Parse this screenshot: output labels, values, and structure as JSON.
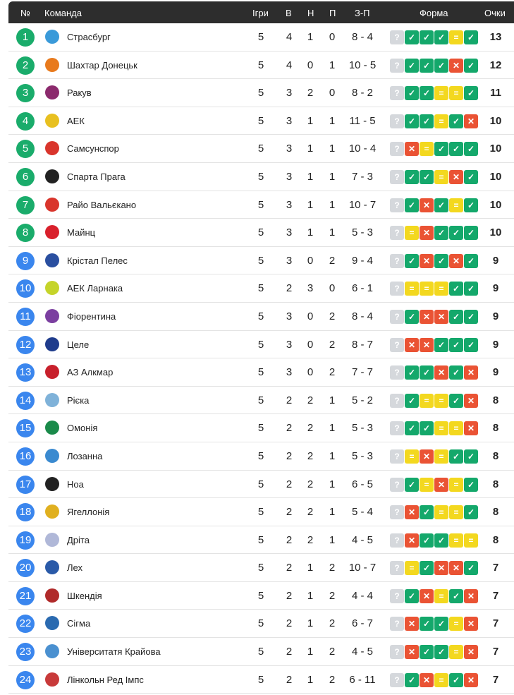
{
  "header": {
    "pos": "№",
    "team": "Команда",
    "played": "Ігри",
    "won": "В",
    "drawn": "Н",
    "lost": "П",
    "goals": "З-П",
    "form": "Форма",
    "points": "Очки"
  },
  "colors": {
    "top": "#1aac6b",
    "rest": "#3a86ee",
    "win": "#14a86b",
    "loss": "#ea5334",
    "draw": "#f3d81f",
    "unknown": "#d5d8dc"
  },
  "form_symbols": {
    "W": "✓",
    "L": "✕",
    "D": "=",
    "?": "?"
  },
  "rows": [
    {
      "pos": "1",
      "team": "Страсбург",
      "p": "5",
      "w": "4",
      "d": "1",
      "l": "0",
      "g": "8 - 4",
      "form": [
        "?",
        "W",
        "W",
        "W",
        "D",
        "W"
      ],
      "pts": "13",
      "logo": "#3a9ad9"
    },
    {
      "pos": "2",
      "team": "Шахтар Донецьк",
      "p": "5",
      "w": "4",
      "d": "0",
      "l": "1",
      "g": "10 - 5",
      "form": [
        "?",
        "W",
        "W",
        "W",
        "L",
        "W"
      ],
      "pts": "12",
      "logo": "#e87a1d"
    },
    {
      "pos": "3",
      "team": "Ракув",
      "p": "5",
      "w": "3",
      "d": "2",
      "l": "0",
      "g": "8 - 2",
      "form": [
        "?",
        "W",
        "W",
        "D",
        "D",
        "W"
      ],
      "pts": "11",
      "logo": "#8c2a6d"
    },
    {
      "pos": "4",
      "team": "АЕК",
      "p": "5",
      "w": "3",
      "d": "1",
      "l": "1",
      "g": "11 - 5",
      "form": [
        "?",
        "W",
        "W",
        "D",
        "W",
        "L"
      ],
      "pts": "10",
      "logo": "#e8c020"
    },
    {
      "pos": "5",
      "team": "Самсунспор",
      "p": "5",
      "w": "3",
      "d": "1",
      "l": "1",
      "g": "10 - 4",
      "form": [
        "?",
        "L",
        "D",
        "W",
        "W",
        "W"
      ],
      "pts": "10",
      "logo": "#d9352c"
    },
    {
      "pos": "6",
      "team": "Спарта Прага",
      "p": "5",
      "w": "3",
      "d": "1",
      "l": "1",
      "g": "7 - 3",
      "form": [
        "?",
        "W",
        "W",
        "D",
        "L",
        "W"
      ],
      "pts": "10",
      "logo": "#222222"
    },
    {
      "pos": "7",
      "team": "Райо Вальєкано",
      "p": "5",
      "w": "3",
      "d": "1",
      "l": "1",
      "g": "10 - 7",
      "form": [
        "?",
        "W",
        "L",
        "W",
        "D",
        "W"
      ],
      "pts": "10",
      "logo": "#d9352c"
    },
    {
      "pos": "8",
      "team": "Майнц",
      "p": "5",
      "w": "3",
      "d": "1",
      "l": "1",
      "g": "5 - 3",
      "form": [
        "?",
        "D",
        "L",
        "W",
        "W",
        "W"
      ],
      "pts": "10",
      "logo": "#d9202c"
    },
    {
      "pos": "9",
      "team": "Крістал Пелес",
      "p": "5",
      "w": "3",
      "d": "0",
      "l": "2",
      "g": "9 - 4",
      "form": [
        "?",
        "W",
        "L",
        "W",
        "L",
        "W"
      ],
      "pts": "9",
      "logo": "#2a4fa0"
    },
    {
      "pos": "10",
      "team": "АЕК Ларнака",
      "p": "5",
      "w": "2",
      "d": "3",
      "l": "0",
      "g": "6 - 1",
      "form": [
        "?",
        "D",
        "D",
        "D",
        "W",
        "W"
      ],
      "pts": "9",
      "logo": "#c5d42a"
    },
    {
      "pos": "11",
      "team": "Фіорентина",
      "p": "5",
      "w": "3",
      "d": "0",
      "l": "2",
      "g": "8 - 4",
      "form": [
        "?",
        "W",
        "L",
        "L",
        "W",
        "W"
      ],
      "pts": "9",
      "logo": "#7b3fa0"
    },
    {
      "pos": "12",
      "team": "Целе",
      "p": "5",
      "w": "3",
      "d": "0",
      "l": "2",
      "g": "8 - 7",
      "form": [
        "?",
        "L",
        "L",
        "W",
        "W",
        "W"
      ],
      "pts": "9",
      "logo": "#1f3c8c"
    },
    {
      "pos": "13",
      "team": "АЗ Алкмар",
      "p": "5",
      "w": "3",
      "d": "0",
      "l": "2",
      "g": "7 - 7",
      "form": [
        "?",
        "W",
        "W",
        "L",
        "W",
        "L"
      ],
      "pts": "9",
      "logo": "#c8202c"
    },
    {
      "pos": "14",
      "team": "Рієка",
      "p": "5",
      "w": "2",
      "d": "2",
      "l": "1",
      "g": "5 - 2",
      "form": [
        "?",
        "W",
        "D",
        "D",
        "W",
        "L"
      ],
      "pts": "8",
      "logo": "#7fb2d9"
    },
    {
      "pos": "15",
      "team": "Омонія",
      "p": "5",
      "w": "2",
      "d": "2",
      "l": "1",
      "g": "5 - 3",
      "form": [
        "?",
        "W",
        "W",
        "D",
        "D",
        "L"
      ],
      "pts": "8",
      "logo": "#1a8a4a"
    },
    {
      "pos": "16",
      "team": "Лозанна",
      "p": "5",
      "w": "2",
      "d": "2",
      "l": "1",
      "g": "5 - 3",
      "form": [
        "?",
        "D",
        "L",
        "D",
        "W",
        "W"
      ],
      "pts": "8",
      "logo": "#3a8ad0"
    },
    {
      "pos": "17",
      "team": "Ноа",
      "p": "5",
      "w": "2",
      "d": "2",
      "l": "1",
      "g": "6 - 5",
      "form": [
        "?",
        "W",
        "D",
        "L",
        "D",
        "W"
      ],
      "pts": "8",
      "logo": "#222222"
    },
    {
      "pos": "18",
      "team": "Ягеллонія",
      "p": "5",
      "w": "2",
      "d": "2",
      "l": "1",
      "g": "5 - 4",
      "form": [
        "?",
        "L",
        "W",
        "D",
        "D",
        "W"
      ],
      "pts": "8",
      "logo": "#e0b020"
    },
    {
      "pos": "19",
      "team": "Дріта",
      "p": "5",
      "w": "2",
      "d": "2",
      "l": "1",
      "g": "4 - 5",
      "form": [
        "?",
        "L",
        "W",
        "W",
        "D",
        "D"
      ],
      "pts": "8",
      "logo": "#b0b8d8"
    },
    {
      "pos": "20",
      "team": "Лех",
      "p": "5",
      "w": "2",
      "d": "1",
      "l": "2",
      "g": "10 - 7",
      "form": [
        "?",
        "D",
        "W",
        "L",
        "L",
        "W"
      ],
      "pts": "7",
      "logo": "#2a5aa8"
    },
    {
      "pos": "21",
      "team": "Шкендія",
      "p": "5",
      "w": "2",
      "d": "1",
      "l": "2",
      "g": "4 - 4",
      "form": [
        "?",
        "W",
        "L",
        "D",
        "W",
        "L"
      ],
      "pts": "7",
      "logo": "#b02a2a"
    },
    {
      "pos": "22",
      "team": "Сігма",
      "p": "5",
      "w": "2",
      "d": "1",
      "l": "2",
      "g": "6 - 7",
      "form": [
        "?",
        "L",
        "W",
        "W",
        "D",
        "L"
      ],
      "pts": "7",
      "logo": "#2a6ab0"
    },
    {
      "pos": "23",
      "team": "Університатя Крайова",
      "p": "5",
      "w": "2",
      "d": "1",
      "l": "2",
      "g": "4 - 5",
      "form": [
        "?",
        "L",
        "W",
        "W",
        "D",
        "L"
      ],
      "pts": "7",
      "logo": "#4a90d0"
    },
    {
      "pos": "24",
      "team": "Лінкольн Ред Імпс",
      "p": "5",
      "w": "2",
      "d": "1",
      "l": "2",
      "g": "6 - 11",
      "form": [
        "?",
        "W",
        "L",
        "D",
        "W",
        "L"
      ],
      "pts": "7",
      "logo": "#c83a3a"
    }
  ]
}
